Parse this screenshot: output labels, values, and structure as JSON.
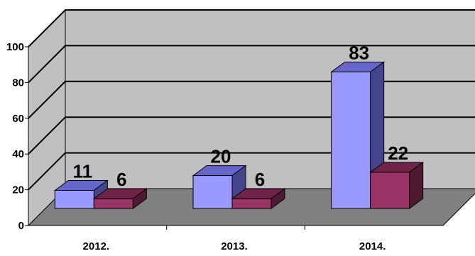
{
  "chart_data": {
    "type": "bar",
    "categories": [
      "2012.",
      "2013.",
      "2014."
    ],
    "series": [
      {
        "values": [
          11,
          20,
          83
        ],
        "color": "#9999ff",
        "top_color": "#6666cc",
        "side_color": "#45458e"
      },
      {
        "values": [
          6,
          6,
          22
        ],
        "color": "#993366",
        "top_color": "#702347",
        "side_color": "#4f1833"
      }
    ],
    "ylim": [
      0,
      100
    ],
    "yticks": [
      0,
      20,
      40,
      60,
      80,
      100
    ],
    "ytick_labels": [
      "0",
      "20",
      "40",
      "60",
      "80",
      "100"
    ],
    "data_labels": [
      [
        "11",
        "20",
        "83"
      ],
      [
        "6",
        "6",
        "22"
      ]
    ],
    "grid": true,
    "wall_color": "#c0c0c0",
    "floor_color": "#808080",
    "legend": "none"
  }
}
